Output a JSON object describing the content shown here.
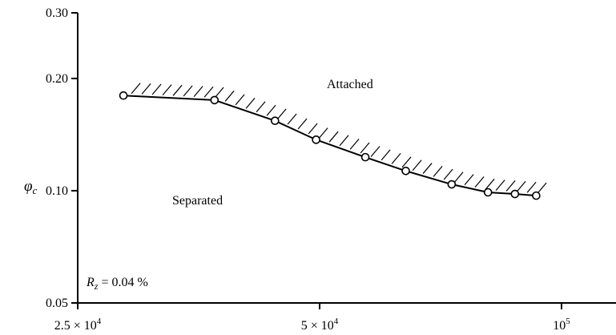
{
  "chart_data": {
    "type": "line",
    "xscale": "log",
    "yscale": "log",
    "xlim": [
      25000,
      115000
    ],
    "ylim": [
      0.05,
      0.3
    ],
    "ylabel_main": "φ",
    "ylabel_sub": "c",
    "y_ticks": [
      {
        "value": 0.05,
        "label": "0.05"
      },
      {
        "value": 0.1,
        "label": "0.10"
      },
      {
        "value": 0.2,
        "label": "0.20"
      },
      {
        "value": 0.3,
        "label": "0.30"
      }
    ],
    "x_ticks": [
      {
        "value": 25000,
        "mantissa": "2.5 × 10",
        "exp": "4"
      },
      {
        "value": 50000,
        "mantissa": "5 × 10",
        "exp": "4"
      },
      {
        "value": 100000,
        "mantissa": "10",
        "exp": "5"
      }
    ],
    "series": [
      {
        "x": [
          28500,
          37000,
          44000,
          49500,
          57000,
          64000,
          73000,
          81000,
          87500,
          93000
        ],
        "y": [
          0.18,
          0.175,
          0.154,
          0.137,
          0.123,
          0.113,
          0.104,
          0.099,
          0.098,
          0.097
        ]
      }
    ],
    "annotations": {
      "attached": "Attached",
      "separated": "Separated",
      "rz_var": "R",
      "rz_sub": "z",
      "rz_value": " = 0.04 %"
    }
  }
}
